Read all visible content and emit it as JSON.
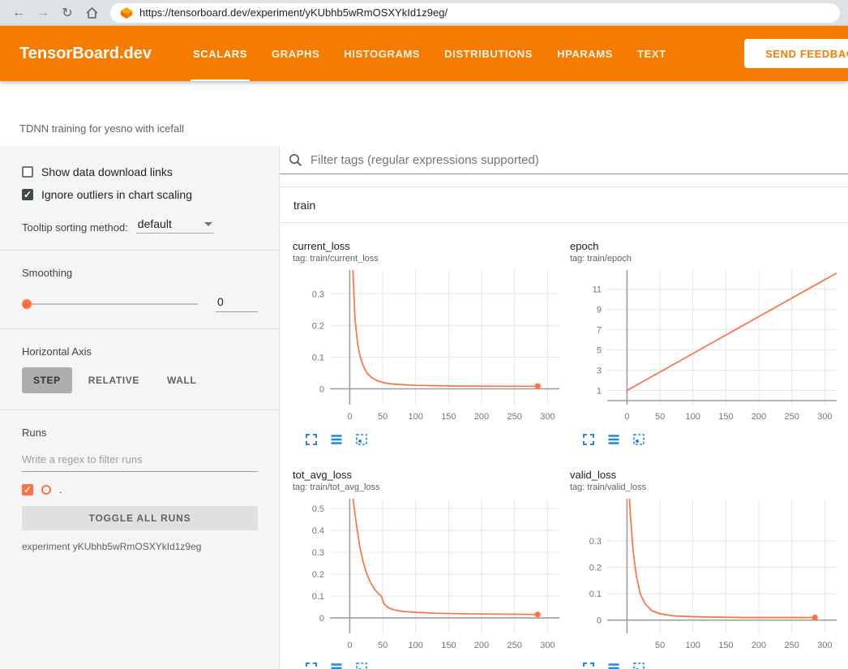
{
  "colors": {
    "header_bg": "#f57c00",
    "run_accent": "#ff7043",
    "tool_icon_blue": "#1e88e5"
  },
  "browser": {
    "back_glyph": "←",
    "forward_glyph": "→",
    "refresh_glyph": "↻",
    "url": "https://tensorboard.dev/experiment/yKUbhb5wRmOSXYkId1z9eg/"
  },
  "header": {
    "logo": "TensorBoard.dev",
    "tabs": [
      {
        "label": "SCALARS",
        "active": true
      },
      {
        "label": "GRAPHS",
        "active": false
      },
      {
        "label": "HISTOGRAMS",
        "active": false
      },
      {
        "label": "DISTRIBUTIONS",
        "active": false
      },
      {
        "label": "HPARAMS",
        "active": false
      },
      {
        "label": "TEXT",
        "active": false
      }
    ],
    "feedback_button": "SEND FEEDBACK"
  },
  "experiment_title": "TDNN training for yesno with icefall",
  "sidebar": {
    "show_download": {
      "label": "Show data download links",
      "checked": false
    },
    "ignore_outliers": {
      "label": "Ignore outliers in chart scaling",
      "checked": true
    },
    "tooltip_sorting": {
      "label": "Tooltip sorting method:",
      "value": "default"
    },
    "smoothing": {
      "label": "Smoothing",
      "value": "0"
    },
    "horizontal_axis": {
      "label": "Horizontal Axis",
      "options": [
        "STEP",
        "RELATIVE",
        "WALL"
      ],
      "selected": "STEP"
    },
    "runs": {
      "label": "Runs",
      "filter_placeholder": "Write a regex to filter runs",
      "items": [
        {
          "name": ".",
          "checked": true,
          "color": "#ff7043"
        }
      ],
      "toggle_button": "TOGGLE ALL RUNS",
      "experiment_label": "experiment yKUbhb5wRmOSXYkId1z9eg"
    }
  },
  "main": {
    "filter_placeholder": "Filter tags (regular expressions supported)",
    "group_label": "train"
  },
  "chart_data": [
    {
      "type": "line",
      "title": "current_loss",
      "tag": "tag: train/current_loss",
      "grid": true,
      "xlim": [
        -30,
        318
      ],
      "ylim": [
        -0.05,
        0.375
      ],
      "xticks": [
        0,
        50,
        100,
        150,
        200,
        250,
        300
      ],
      "yticks": [
        0,
        0.1,
        0.2,
        0.3
      ],
      "end_marker": true,
      "series": [
        {
          "name": ".",
          "color": "#ff7043",
          "x": [
            3,
            5,
            8,
            12,
            16,
            20,
            26,
            33,
            42,
            52,
            65,
            80,
            100,
            130,
            160,
            200,
            240,
            285
          ],
          "y": [
            0.55,
            0.36,
            0.22,
            0.14,
            0.1,
            0.075,
            0.05,
            0.036,
            0.025,
            0.019,
            0.015,
            0.013,
            0.011,
            0.01,
            0.009,
            0.0085,
            0.008,
            0.008
          ]
        }
      ]
    },
    {
      "type": "line",
      "title": "epoch",
      "tag": "tag: train/epoch",
      "grid": true,
      "xlim": [
        -30,
        318
      ],
      "ylim": [
        -0.4,
        12.9
      ],
      "xticks": [
        0,
        50,
        100,
        150,
        200,
        250,
        300
      ],
      "yticks": [
        1,
        3,
        5,
        7,
        9,
        11
      ],
      "end_marker": false,
      "series": [
        {
          "name": ".",
          "color": "#ff7043",
          "x": [
            0,
            318
          ],
          "y": [
            1,
            12.6
          ]
        }
      ]
    },
    {
      "type": "line",
      "title": "tot_avg_loss",
      "tag": "tag: train/tot_avg_loss",
      "grid": true,
      "xlim": [
        -30,
        318
      ],
      "ylim": [
        -0.07,
        0.545
      ],
      "xticks": [
        0,
        50,
        100,
        150,
        200,
        250,
        300
      ],
      "yticks": [
        0,
        0.1,
        0.2,
        0.3,
        0.4,
        0.5
      ],
      "end_marker": true,
      "series": [
        {
          "name": ".",
          "color": "#ff7043",
          "x": [
            3,
            6,
            10,
            15,
            20,
            26,
            32,
            38,
            44,
            48,
            52,
            58,
            66,
            80,
            100,
            130,
            160,
            200,
            250,
            285
          ],
          "y": [
            0.6,
            0.52,
            0.43,
            0.33,
            0.26,
            0.2,
            0.16,
            0.13,
            0.11,
            0.1,
            0.065,
            0.048,
            0.038,
            0.03,
            0.026,
            0.022,
            0.02,
            0.018,
            0.017,
            0.016
          ]
        }
      ]
    },
    {
      "type": "line",
      "title": "valid_loss",
      "tag": "tag: train/valid_loss",
      "grid": true,
      "xlim": [
        -30,
        318
      ],
      "ylim": [
        -0.05,
        0.46
      ],
      "xticks": [
        50,
        100,
        150,
        200,
        250,
        300
      ],
      "yticks": [
        0,
        0.1,
        0.2,
        0.3
      ],
      "end_marker": true,
      "series": [
        {
          "name": ".",
          "color": "#ff7043",
          "x": [
            2,
            5,
            9,
            14,
            20,
            28,
            38,
            50,
            70,
            100,
            140,
            180,
            220,
            260,
            285
          ],
          "y": [
            0.55,
            0.4,
            0.27,
            0.17,
            0.1,
            0.06,
            0.035,
            0.024,
            0.016,
            0.013,
            0.011,
            0.01,
            0.01,
            0.01,
            0.01
          ]
        }
      ]
    }
  ]
}
